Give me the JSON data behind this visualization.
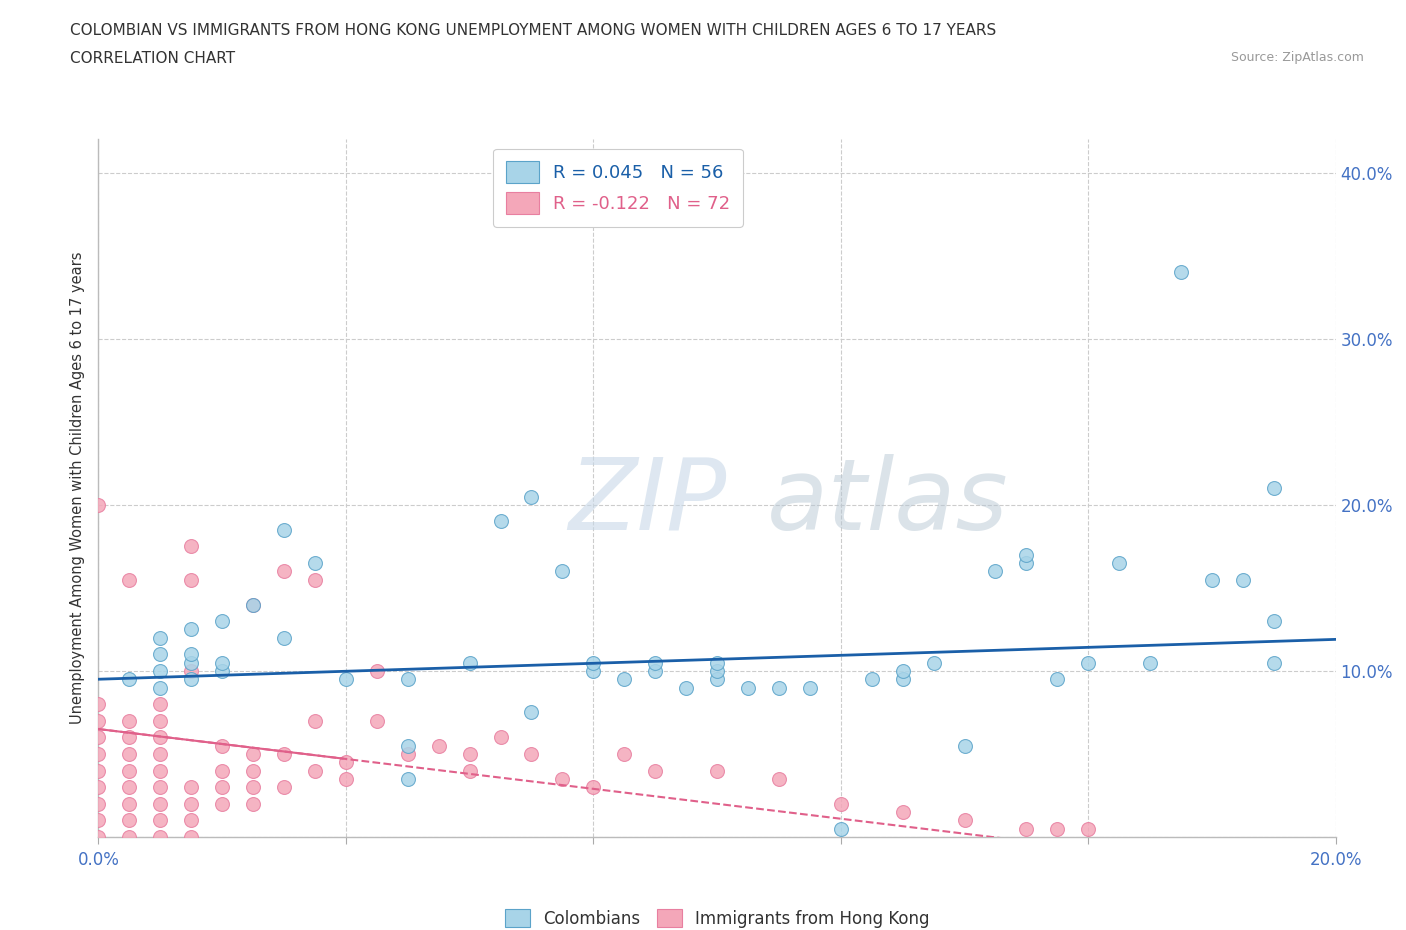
{
  "title_line1": "COLOMBIAN VS IMMIGRANTS FROM HONG KONG UNEMPLOYMENT AMONG WOMEN WITH CHILDREN AGES 6 TO 17 YEARS",
  "title_line2": "CORRELATION CHART",
  "source": "Source: ZipAtlas.com",
  "ylabel": "Unemployment Among Women with Children Ages 6 to 17 years",
  "xlim": [
    0.0,
    0.2
  ],
  "ylim": [
    0.0,
    0.42
  ],
  "xticks": [
    0.0,
    0.04,
    0.08,
    0.12,
    0.16,
    0.2
  ],
  "yticks": [
    0.0,
    0.1,
    0.2,
    0.3,
    0.4
  ],
  "colombians_R": 0.045,
  "colombians_N": 56,
  "hk_R": -0.122,
  "hk_N": 72,
  "colombian_color": "#a8d4e8",
  "hk_color": "#f4a7b9",
  "colombian_edge_color": "#5ba3c9",
  "hk_edge_color": "#e87fa0",
  "colombian_line_color": "#1a5fa8",
  "hk_line_color": "#e0608a",
  "grid_color": "#cccccc",
  "background_color": "#ffffff",
  "watermark_zip": "ZIP",
  "watermark_atlas": "atlas",
  "colombians_x": [
    0.005,
    0.01,
    0.01,
    0.01,
    0.01,
    0.015,
    0.015,
    0.015,
    0.015,
    0.02,
    0.02,
    0.02,
    0.025,
    0.03,
    0.03,
    0.035,
    0.04,
    0.05,
    0.05,
    0.05,
    0.06,
    0.065,
    0.07,
    0.07,
    0.075,
    0.08,
    0.08,
    0.085,
    0.09,
    0.09,
    0.095,
    0.1,
    0.1,
    0.1,
    0.105,
    0.11,
    0.115,
    0.12,
    0.125,
    0.13,
    0.13,
    0.135,
    0.14,
    0.145,
    0.15,
    0.15,
    0.155,
    0.16,
    0.165,
    0.17,
    0.175,
    0.18,
    0.185,
    0.19,
    0.19,
    0.19
  ],
  "colombians_y": [
    0.095,
    0.09,
    0.1,
    0.11,
    0.12,
    0.095,
    0.105,
    0.11,
    0.125,
    0.1,
    0.105,
    0.13,
    0.14,
    0.12,
    0.185,
    0.165,
    0.095,
    0.035,
    0.055,
    0.095,
    0.105,
    0.19,
    0.075,
    0.205,
    0.16,
    0.1,
    0.105,
    0.095,
    0.1,
    0.105,
    0.09,
    0.095,
    0.1,
    0.105,
    0.09,
    0.09,
    0.09,
    0.005,
    0.095,
    0.095,
    0.1,
    0.105,
    0.055,
    0.16,
    0.165,
    0.17,
    0.095,
    0.105,
    0.165,
    0.105,
    0.34,
    0.155,
    0.155,
    0.105,
    0.13,
    0.21
  ],
  "hk_x": [
    0.0,
    0.0,
    0.0,
    0.0,
    0.0,
    0.0,
    0.0,
    0.0,
    0.0,
    0.0,
    0.005,
    0.005,
    0.005,
    0.005,
    0.005,
    0.005,
    0.005,
    0.005,
    0.005,
    0.01,
    0.01,
    0.01,
    0.01,
    0.01,
    0.01,
    0.01,
    0.01,
    0.01,
    0.015,
    0.015,
    0.015,
    0.015,
    0.015,
    0.015,
    0.015,
    0.02,
    0.02,
    0.02,
    0.02,
    0.025,
    0.025,
    0.025,
    0.025,
    0.025,
    0.03,
    0.03,
    0.03,
    0.035,
    0.035,
    0.035,
    0.04,
    0.04,
    0.045,
    0.045,
    0.05,
    0.055,
    0.06,
    0.06,
    0.065,
    0.07,
    0.075,
    0.08,
    0.085,
    0.09,
    0.1,
    0.11,
    0.12,
    0.13,
    0.14,
    0.15,
    0.155,
    0.16
  ],
  "hk_y": [
    0.0,
    0.01,
    0.02,
    0.03,
    0.04,
    0.05,
    0.06,
    0.07,
    0.08,
    0.2,
    0.0,
    0.01,
    0.02,
    0.03,
    0.04,
    0.05,
    0.06,
    0.07,
    0.155,
    0.0,
    0.01,
    0.02,
    0.03,
    0.04,
    0.05,
    0.06,
    0.07,
    0.08,
    0.0,
    0.01,
    0.02,
    0.03,
    0.1,
    0.155,
    0.175,
    0.02,
    0.03,
    0.04,
    0.055,
    0.02,
    0.03,
    0.04,
    0.05,
    0.14,
    0.03,
    0.05,
    0.16,
    0.04,
    0.07,
    0.155,
    0.035,
    0.045,
    0.07,
    0.1,
    0.05,
    0.055,
    0.04,
    0.05,
    0.06,
    0.05,
    0.035,
    0.03,
    0.05,
    0.04,
    0.04,
    0.035,
    0.02,
    0.015,
    0.01,
    0.005,
    0.005,
    0.005
  ]
}
